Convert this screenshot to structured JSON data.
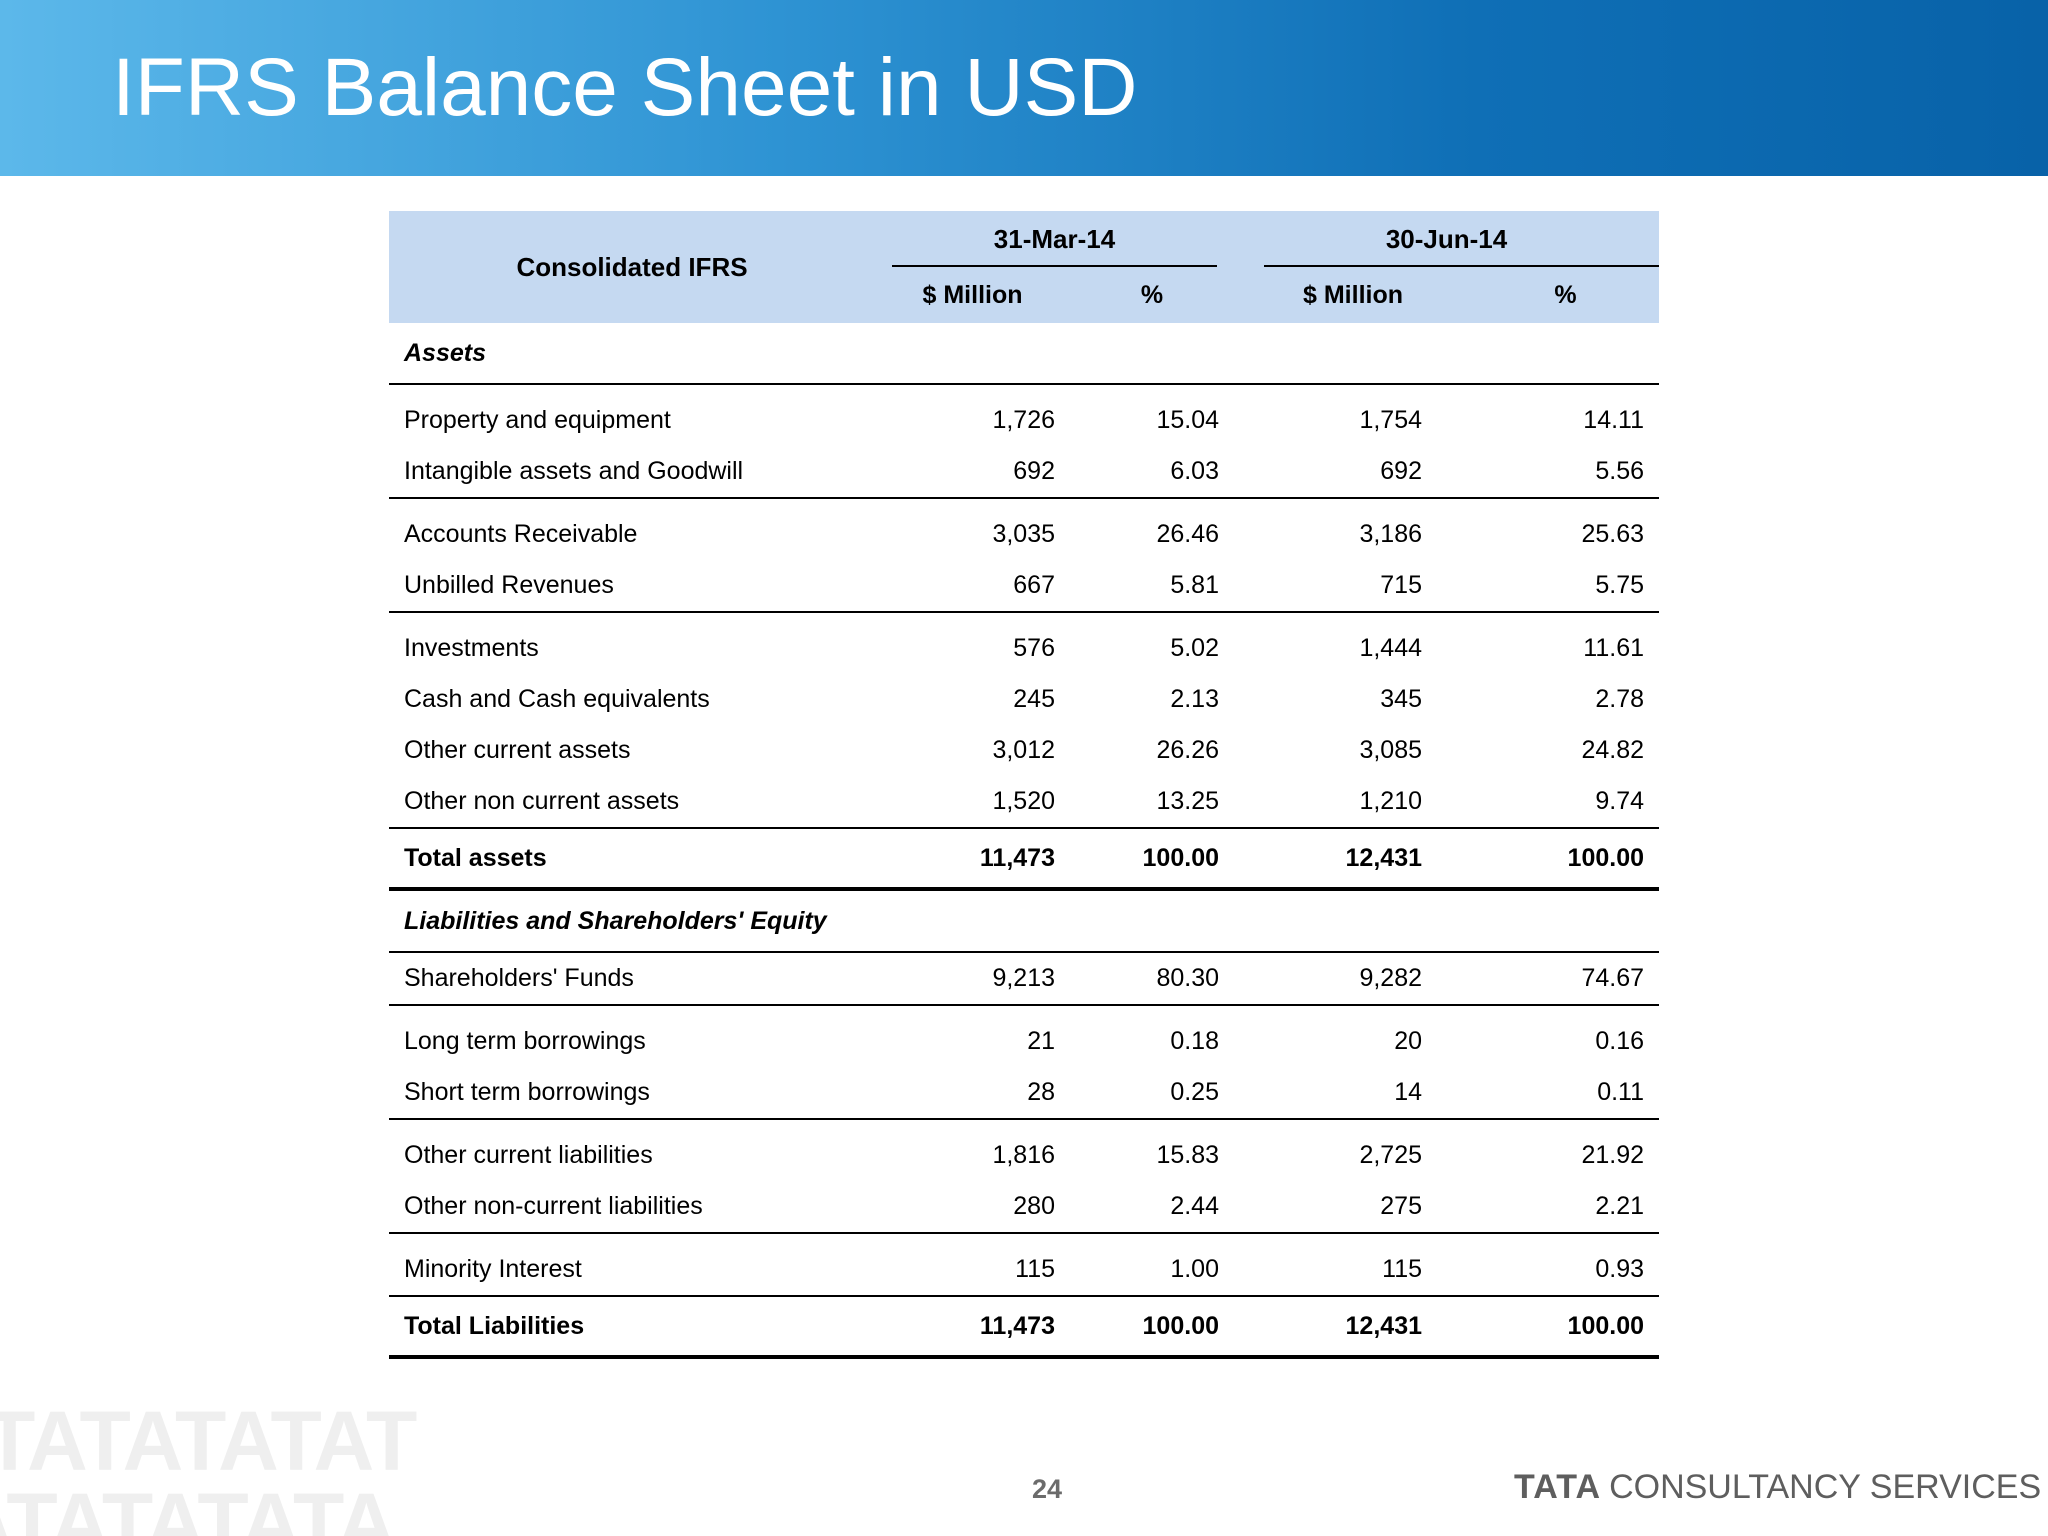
{
  "slide": {
    "title": "IFRS Balance Sheet in USD",
    "page_number": "24"
  },
  "brand": {
    "logo_text": "TATA CONSULTANCY SERVICES",
    "logo_word_1": "TATA",
    "logo_word_2": "CONSULTANCY SERVICES",
    "watermark_text": "TATATATAT ATATATATA"
  },
  "colors": {
    "banner_start": "#5cb8ea",
    "banner_end": "#0862a8",
    "table_header": "#c5d9f1",
    "logo_grey": "#5e5e5e"
  },
  "table": {
    "label_header": "Consolidated IFRS",
    "periods": [
      "31-Mar-14",
      "30-Jun-14"
    ],
    "subheaders": [
      "$ Million",
      "%",
      "$ Million",
      "%"
    ],
    "sections": {
      "assets": "Assets",
      "liabilities": "Liabilities and Shareholders' Equity"
    },
    "rows": [
      {
        "label": "Property and equipment",
        "v": [
          "1,726",
          "15.04",
          "1,754",
          "14.11"
        ]
      },
      {
        "label": "Intangible assets and Goodwill",
        "v": [
          "692",
          "6.03",
          "692",
          "5.56"
        ]
      },
      {
        "label": "Accounts Receivable",
        "v": [
          "3,035",
          "26.46",
          "3,186",
          "25.63"
        ]
      },
      {
        "label": "Unbilled Revenues",
        "v": [
          "667",
          "5.81",
          "715",
          "5.75"
        ]
      },
      {
        "label": "Investments",
        "v": [
          "576",
          "5.02",
          "1,444",
          "11.61"
        ]
      },
      {
        "label": "Cash and Cash equivalents",
        "v": [
          "245",
          "2.13",
          "345",
          "2.78"
        ]
      },
      {
        "label": "Other current assets",
        "v": [
          "3,012",
          "26.26",
          "3,085",
          "24.82"
        ]
      },
      {
        "label": "Other non current assets",
        "v": [
          "1,520",
          "13.25",
          "1,210",
          "9.74"
        ]
      },
      {
        "label": "Total assets",
        "v": [
          "11,473",
          "100.00",
          "12,431",
          "100.00"
        ]
      },
      {
        "label": "Shareholders' Funds",
        "v": [
          "9,213",
          "80.30",
          "9,282",
          "74.67"
        ]
      },
      {
        "label": "Long term borrowings",
        "v": [
          "21",
          "0.18",
          "20",
          "0.16"
        ]
      },
      {
        "label": "Short term borrowings",
        "v": [
          "28",
          "0.25",
          "14",
          "0.11"
        ]
      },
      {
        "label": "Other current liabilities",
        "v": [
          "1,816",
          "15.83",
          "2,725",
          "21.92"
        ]
      },
      {
        "label": "Other non-current liabilities",
        "v": [
          "280",
          "2.44",
          "275",
          "2.21"
        ]
      },
      {
        "label": "Minority Interest",
        "v": [
          "115",
          "1.00",
          "115",
          "0.93"
        ]
      },
      {
        "label": "Total Liabilities",
        "v": [
          "11,473",
          "100.00",
          "12,431",
          "100.00"
        ]
      }
    ]
  }
}
